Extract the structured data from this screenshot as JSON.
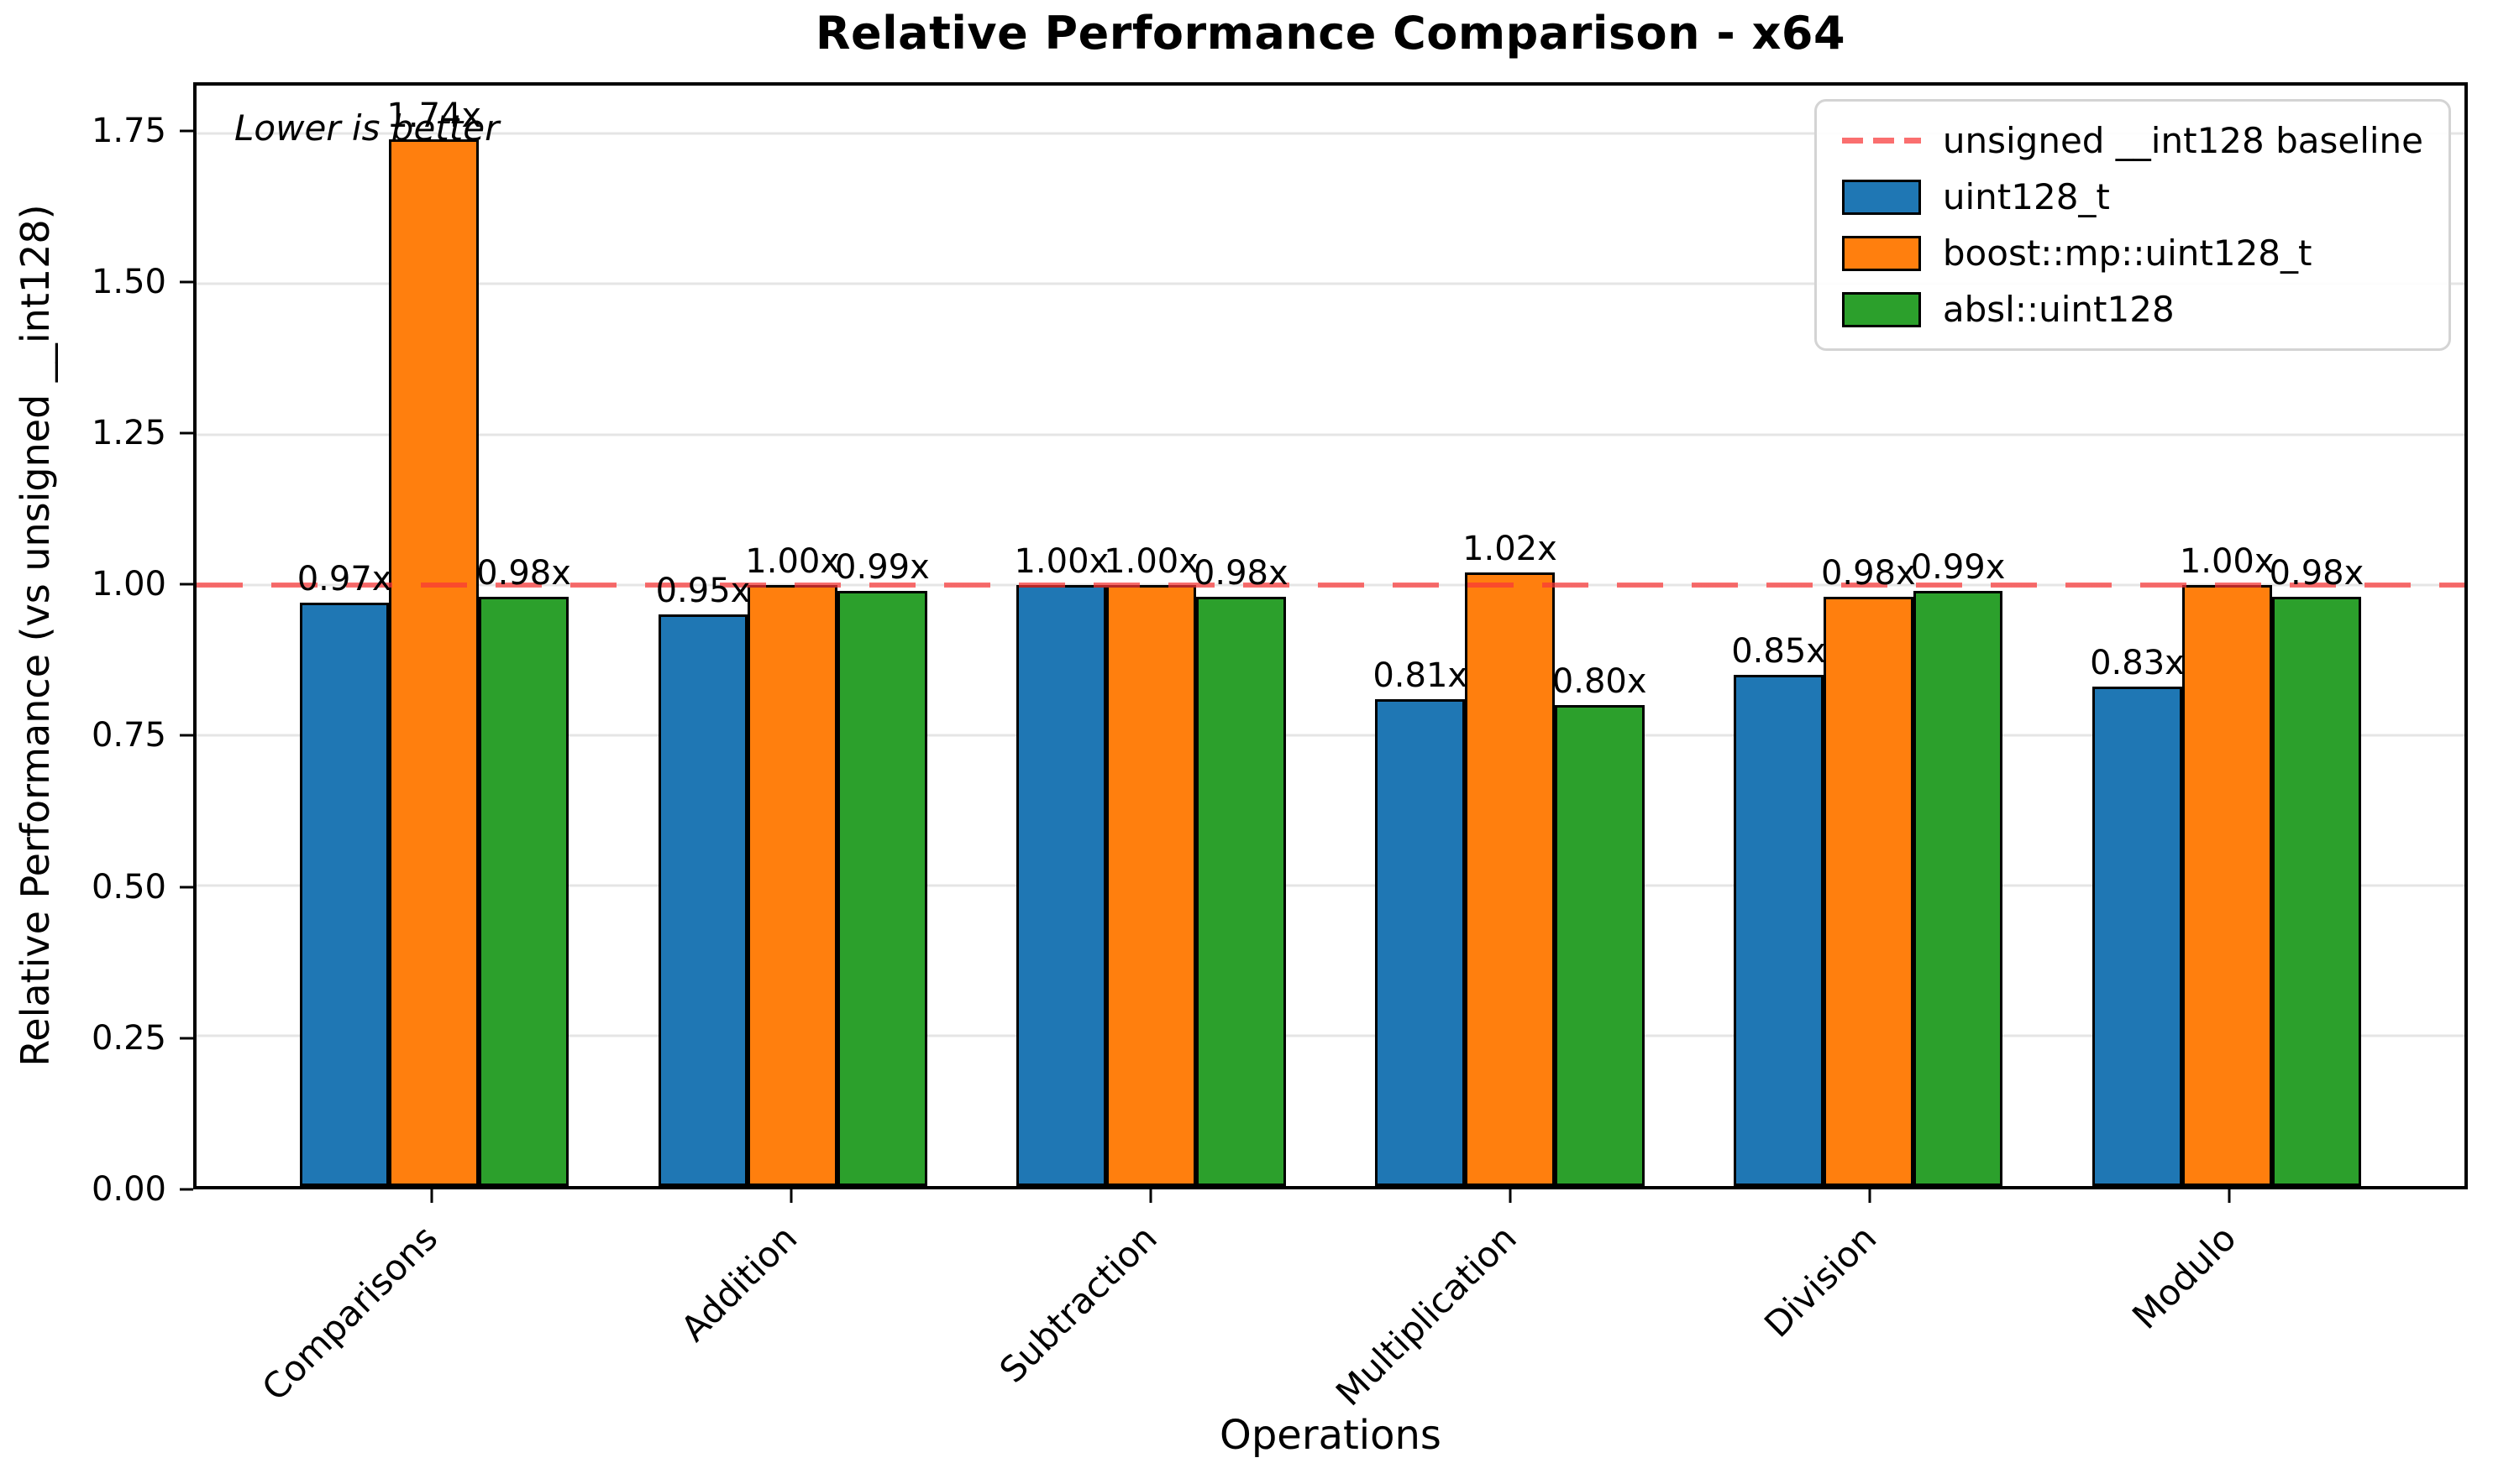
{
  "chart_data": {
    "type": "bar",
    "title": "Relative Performance Comparison - x64",
    "xlabel": "Operations",
    "ylabel": "Relative Performance (vs unsigned __int128)",
    "annotation": "Lower is better",
    "categories": [
      "Comparisons",
      "Addition",
      "Subtraction",
      "Multiplication",
      "Division",
      "Modulo"
    ],
    "series": [
      {
        "name": "uint128_t",
        "color": "#1f77b4",
        "values": [
          0.97,
          0.95,
          1.0,
          0.81,
          0.85,
          0.83
        ],
        "labels": [
          "0.97x",
          "0.95x",
          "1.00x",
          "0.81x",
          "0.85x",
          "0.83x"
        ]
      },
      {
        "name": "boost::mp::uint128_t",
        "color": "#ff7f0e",
        "values": [
          1.74,
          1.0,
          1.0,
          1.02,
          0.98,
          1.0
        ],
        "labels": [
          "1.74x",
          "1.00x",
          "1.00x",
          "1.02x",
          "0.98x",
          "1.00x"
        ]
      },
      {
        "name": "absl::uint128",
        "color": "#2ca02c",
        "values": [
          0.98,
          0.99,
          0.98,
          0.8,
          0.99,
          0.98
        ],
        "labels": [
          "0.98x",
          "0.99x",
          "0.98x",
          "0.80x",
          "0.99x",
          "0.98x"
        ]
      }
    ],
    "baseline": {
      "value": 1.0,
      "label": "unsigned __int128 baseline",
      "color": "#f83737",
      "style": "dashed"
    },
    "ytick_values": [
      0.0,
      0.25,
      0.5,
      0.75,
      1.0,
      1.25,
      1.5,
      1.75
    ],
    "ytick_labels": [
      "0.00",
      "0.25",
      "0.50",
      "0.75",
      "1.00",
      "1.25",
      "1.50",
      "1.75"
    ],
    "ylim": [
      0,
      1.83
    ],
    "bar_width": 0.25,
    "grid": true,
    "legend_position": "upper right"
  }
}
